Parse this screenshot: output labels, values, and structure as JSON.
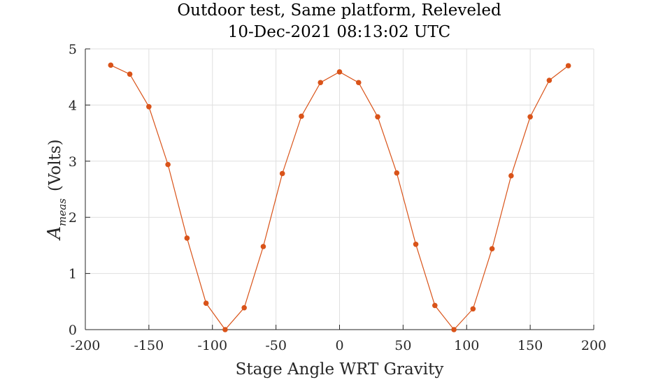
{
  "chart_data": {
    "type": "line",
    "title": "Outdoor test, Same platform, Releveled",
    "subtitle": "10-Dec-2021 08:13:02 UTC",
    "xlabel": "Stage Angle WRT Gravity",
    "ylabel_symbol": "A",
    "ylabel_subscript": "meas",
    "ylabel_units": "(Volts)",
    "xlim": [
      -200,
      200
    ],
    "ylim": [
      0,
      5
    ],
    "xticks": [
      -200,
      -150,
      -100,
      -50,
      0,
      50,
      100,
      150,
      200
    ],
    "yticks": [
      0,
      1,
      2,
      3,
      4,
      5
    ],
    "grid": true,
    "series_color": "#D95319",
    "series": [
      {
        "x": [
          -180,
          -165,
          -150,
          -135,
          -120,
          -105,
          -90,
          -75,
          -60,
          -45,
          -30,
          -15,
          0,
          15,
          30,
          45,
          60,
          75,
          90,
          105,
          120,
          135,
          150,
          165,
          180
        ],
        "y": [
          4.71,
          4.55,
          3.97,
          2.94,
          1.63,
          0.47,
          0.0,
          0.39,
          1.48,
          2.78,
          3.8,
          4.4,
          4.59,
          4.4,
          3.79,
          2.79,
          1.52,
          0.43,
          0.0,
          0.37,
          1.44,
          2.74,
          3.79,
          4.44,
          4.7
        ]
      }
    ]
  }
}
